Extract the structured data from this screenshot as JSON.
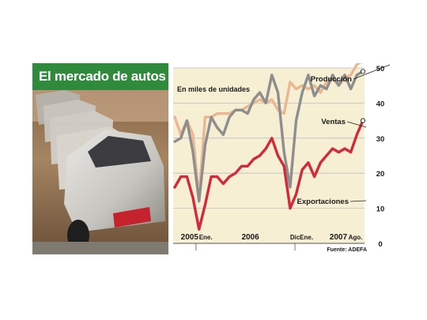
{
  "chart_data": {
    "type": "line",
    "title": "El mercado de autos",
    "unit_label": "En miles de unidades",
    "source": "Fuente: ADEFA",
    "ylim": [
      0,
      50
    ],
    "yticks": [
      "0",
      "10",
      "20",
      "30",
      "40",
      "50"
    ],
    "ytick_values": [
      0,
      10,
      20,
      30,
      40,
      50
    ],
    "n_months": 32,
    "year_labels": [
      {
        "text": "2005",
        "month": 1
      },
      {
        "text": "2006",
        "month": 11
      },
      {
        "text": "2007",
        "month": 25.5
      }
    ],
    "month_labels": [
      {
        "text": "Ene.",
        "month": 4
      },
      {
        "text": "Dic.",
        "month": 19
      },
      {
        "text": "Ene.",
        "month": 20.6
      },
      {
        "text": "Ago.",
        "month": 28.6
      }
    ],
    "series": [
      {
        "name": "Producción",
        "color": "#e9b892",
        "values": [
          36,
          31,
          35,
          31,
          13,
          36,
          36,
          37,
          37,
          37,
          38,
          38,
          39,
          40,
          41,
          40,
          41,
          38,
          37,
          46,
          44,
          45,
          44,
          45,
          43,
          46,
          47,
          45,
          47,
          48,
          51,
          52
        ]
      },
      {
        "name": "Ventas",
        "color": "#8e8e8e",
        "values": [
          29,
          30,
          35,
          26,
          12,
          28,
          36,
          33,
          31,
          36,
          38,
          38,
          37,
          41,
          43,
          40,
          48,
          43,
          26,
          16,
          35,
          43,
          48,
          42,
          45,
          44,
          48,
          45,
          48,
          44,
          48,
          49
        ]
      },
      {
        "name": "Exportaciones",
        "color": "#d12a3a",
        "values": [
          16,
          19,
          19,
          13,
          4,
          11,
          19,
          19,
          17,
          19,
          20,
          22,
          22,
          24,
          25,
          27,
          30,
          25,
          22,
          10,
          14,
          21,
          23,
          19,
          23,
          25,
          27,
          26,
          27,
          26,
          31,
          35
        ]
      }
    ]
  }
}
